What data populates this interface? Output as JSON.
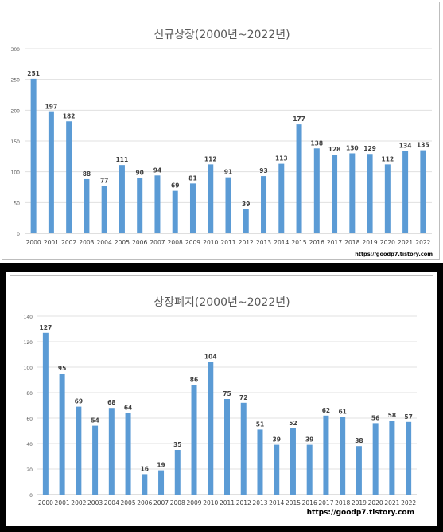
{
  "chart_data": [
    {
      "type": "bar",
      "title": "신규상장(2000년~2022년)",
      "categories": [
        "2000",
        "2001",
        "2002",
        "2003",
        "2004",
        "2005",
        "2006",
        "2007",
        "2008",
        "2009",
        "2010",
        "2011",
        "2012",
        "2013",
        "2014",
        "2015",
        "2016",
        "2017",
        "2018",
        "2019",
        "2020",
        "2021",
        "2022"
      ],
      "values": [
        251,
        197,
        182,
        88,
        77,
        111,
        90,
        94,
        69,
        81,
        112,
        91,
        39,
        93,
        113,
        177,
        138,
        128,
        130,
        129,
        112,
        134,
        135
      ],
      "ylim": [
        0,
        300
      ],
      "yticks": [
        "0",
        "50",
        "100",
        "150",
        "200",
        "250",
        "300"
      ],
      "grid": true,
      "bar_color": "#5b9bd5",
      "watermark": "https://goodp7.tistory.com"
    },
    {
      "type": "bar",
      "title": "상장폐지(2000년~2022년)",
      "categories": [
        "2000",
        "2001",
        "2002",
        "2003",
        "2004",
        "2005",
        "2006",
        "2007",
        "2008",
        "2009",
        "2010",
        "2011",
        "2012",
        "2013",
        "2014",
        "2015",
        "2016",
        "2017",
        "2018",
        "2019",
        "2020",
        "2021",
        "2022"
      ],
      "values": [
        127,
        95,
        69,
        54,
        68,
        64,
        16,
        19,
        35,
        86,
        104,
        75,
        72,
        51,
        39,
        52,
        39,
        62,
        61,
        38,
        56,
        58,
        57
      ],
      "ylim": [
        0,
        140
      ],
      "yticks": [
        "0",
        "20",
        "40",
        "60",
        "80",
        "100",
        "120",
        "140"
      ],
      "grid": true,
      "bar_color": "#5b9bd5",
      "watermark": "https://goodp7.tistory.com"
    }
  ]
}
